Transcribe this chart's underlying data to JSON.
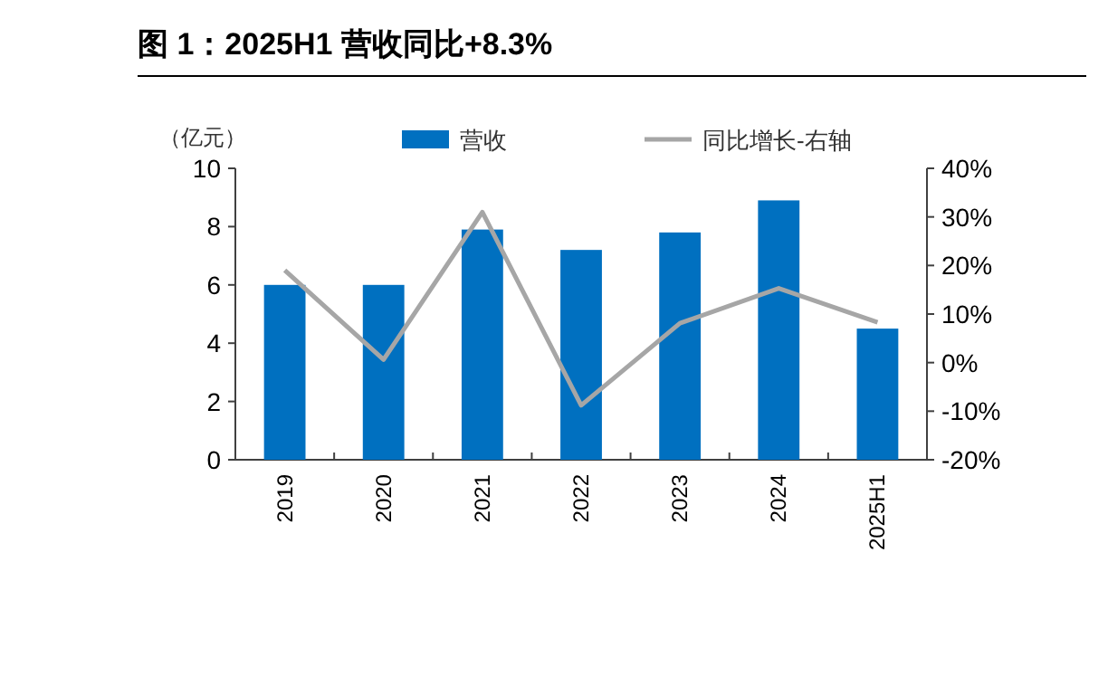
{
  "chart_data": {
    "type": "bar",
    "title": "图 1：2025H1 营收同比+8.3%",
    "ylabel": "（亿元）",
    "categories": [
      "2019",
      "2020",
      "2021",
      "2022",
      "2023",
      "2024",
      "2025H1"
    ],
    "series": [
      {
        "name": "营收",
        "color": "#0070c0",
        "values": [
          6.0,
          6.0,
          7.9,
          7.2,
          7.8,
          8.9,
          4.5
        ]
      },
      {
        "name": "同比增长-右轴",
        "type": "line",
        "axis": "y2",
        "color": "#a6a6a6",
        "values": [
          19,
          0.6,
          31,
          -8.8,
          8.1,
          15.3,
          8.3
        ]
      }
    ],
    "ylim": [
      0,
      10
    ],
    "yticks": [
      0,
      2,
      4,
      6,
      8,
      10
    ],
    "y2lim": [
      -20,
      40
    ],
    "y2ticks": [
      {
        "value": -20,
        "label": "-20%"
      },
      {
        "value": -10,
        "label": "-10%"
      },
      {
        "value": 0,
        "label": "0%"
      },
      {
        "value": 10,
        "label": "10%"
      },
      {
        "value": 20,
        "label": "20%"
      },
      {
        "value": 30,
        "label": "30%"
      },
      {
        "value": 40,
        "label": "40%"
      }
    ],
    "legend": "top",
    "grid": false
  }
}
